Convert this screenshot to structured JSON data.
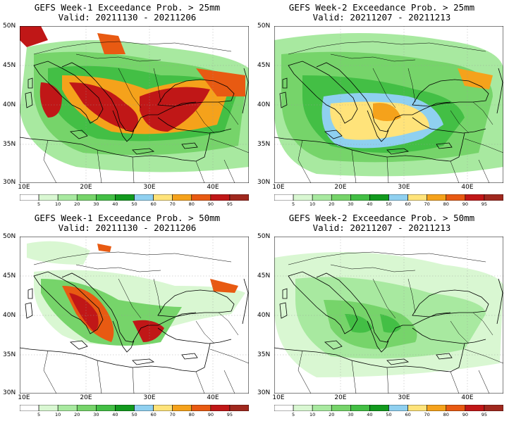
{
  "colorbar": {
    "ticks": [
      "5",
      "10",
      "20",
      "30",
      "40",
      "50",
      "60",
      "70",
      "80",
      "90",
      "95"
    ],
    "colors": [
      "#ffffff",
      "#d9f7d2",
      "#a8e9a0",
      "#76d46a",
      "#43bf45",
      "#129a1e",
      "#8fd0f0",
      "#ffe37a",
      "#f5a21b",
      "#e85a12",
      "#c01717",
      "#a0281e"
    ]
  },
  "axes": {
    "lat_labels": [
      "50N",
      "45N",
      "40N",
      "35N",
      "30N"
    ],
    "lon_labels": [
      "10E",
      "20E",
      "30E",
      "40E"
    ]
  },
  "panels": [
    {
      "title": "GEFS Week-1 Exceedance Prob. > 25mm",
      "valid": "Valid: 20211130 - 20211206"
    },
    {
      "title": "GEFS Week-2 Exceedance Prob. > 25mm",
      "valid": "Valid: 20211207 - 20211213"
    },
    {
      "title": "GEFS Week-1 Exceedance Prob. > 50mm",
      "valid": "Valid: 20211130 - 20211206"
    },
    {
      "title": "GEFS Week-2 Exceedance Prob. > 50mm",
      "valid": "Valid: 20211207 - 20211213"
    }
  ]
}
